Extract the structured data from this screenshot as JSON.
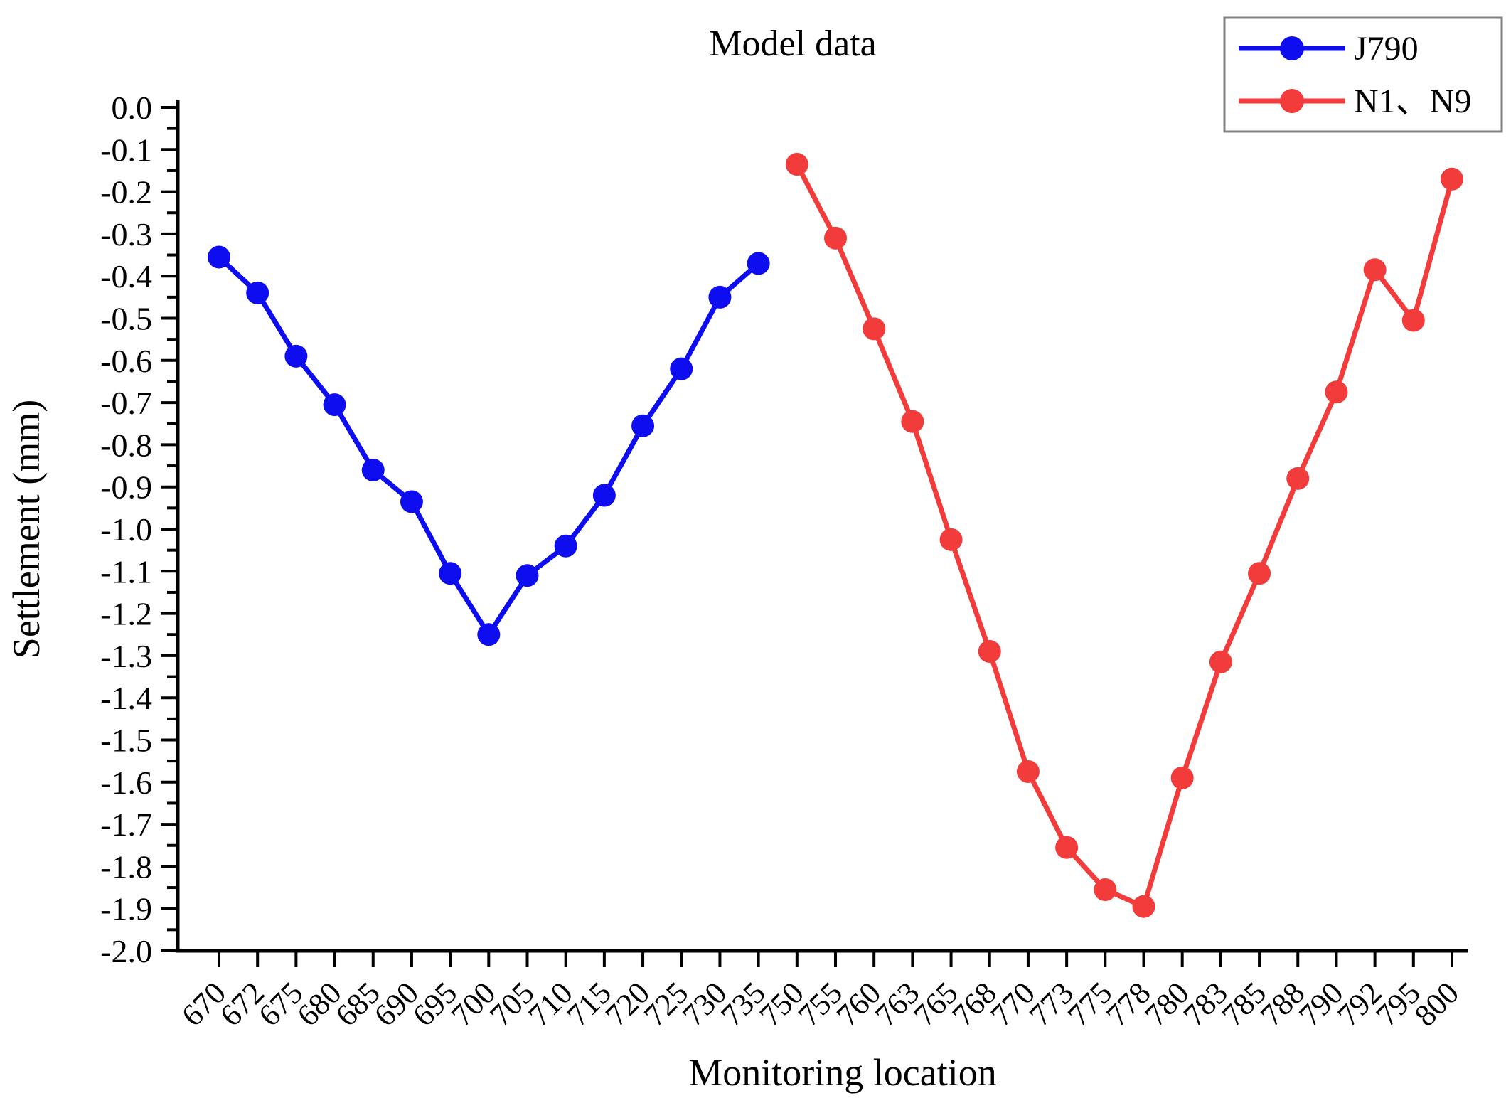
{
  "title": "Model data",
  "axes": {
    "xlabel": "Monitoring location",
    "ylabel": "Settlement (mm)",
    "y_top_label": "0.0",
    "y_bottom_label": "-2.0"
  },
  "legend": {
    "position": "top-right",
    "items": [
      {
        "label": "J790",
        "color": "#0d0df0"
      },
      {
        "label": "N1、N9",
        "color": "#f23b3b"
      }
    ]
  },
  "chart_data": {
    "type": "line",
    "title": "Model data",
    "xlabel": "Monitoring location",
    "ylabel": "Settlement (mm)",
    "ylim": [
      0.0,
      -2.0
    ],
    "ytick_step": 0.1,
    "grid": false,
    "legend_position": "top-right",
    "categories": [
      "670",
      "672",
      "675",
      "680",
      "685",
      "690",
      "695",
      "700",
      "705",
      "710",
      "715",
      "720",
      "725",
      "730",
      "735",
      "750",
      "755",
      "760",
      "763",
      "765",
      "768",
      "770",
      "773",
      "775",
      "778",
      "780",
      "783",
      "785",
      "788",
      "790",
      "792",
      "795",
      "800"
    ],
    "series": [
      {
        "name": "J790",
        "color": "#0d0df0",
        "values": [
          -0.355,
          -0.44,
          -0.59,
          -0.705,
          -0.86,
          -0.935,
          -1.105,
          -1.25,
          -1.11,
          -1.04,
          -0.92,
          -0.755,
          -0.62,
          -0.45,
          -0.37,
          null,
          null,
          null,
          null,
          null,
          null,
          null,
          null,
          null,
          null,
          null,
          null,
          null,
          null,
          null,
          null,
          null,
          null
        ]
      },
      {
        "name": "N1、N9",
        "color": "#f23b3b",
        "values": [
          null,
          null,
          null,
          null,
          null,
          null,
          null,
          null,
          null,
          null,
          null,
          null,
          null,
          null,
          null,
          -0.135,
          -0.31,
          -0.525,
          -0.745,
          -1.025,
          -1.29,
          -1.575,
          -1.755,
          -1.855,
          -1.895,
          -1.59,
          -1.315,
          -1.105,
          -0.88,
          -0.675,
          -0.385,
          -0.505,
          -0.17
        ]
      }
    ]
  }
}
